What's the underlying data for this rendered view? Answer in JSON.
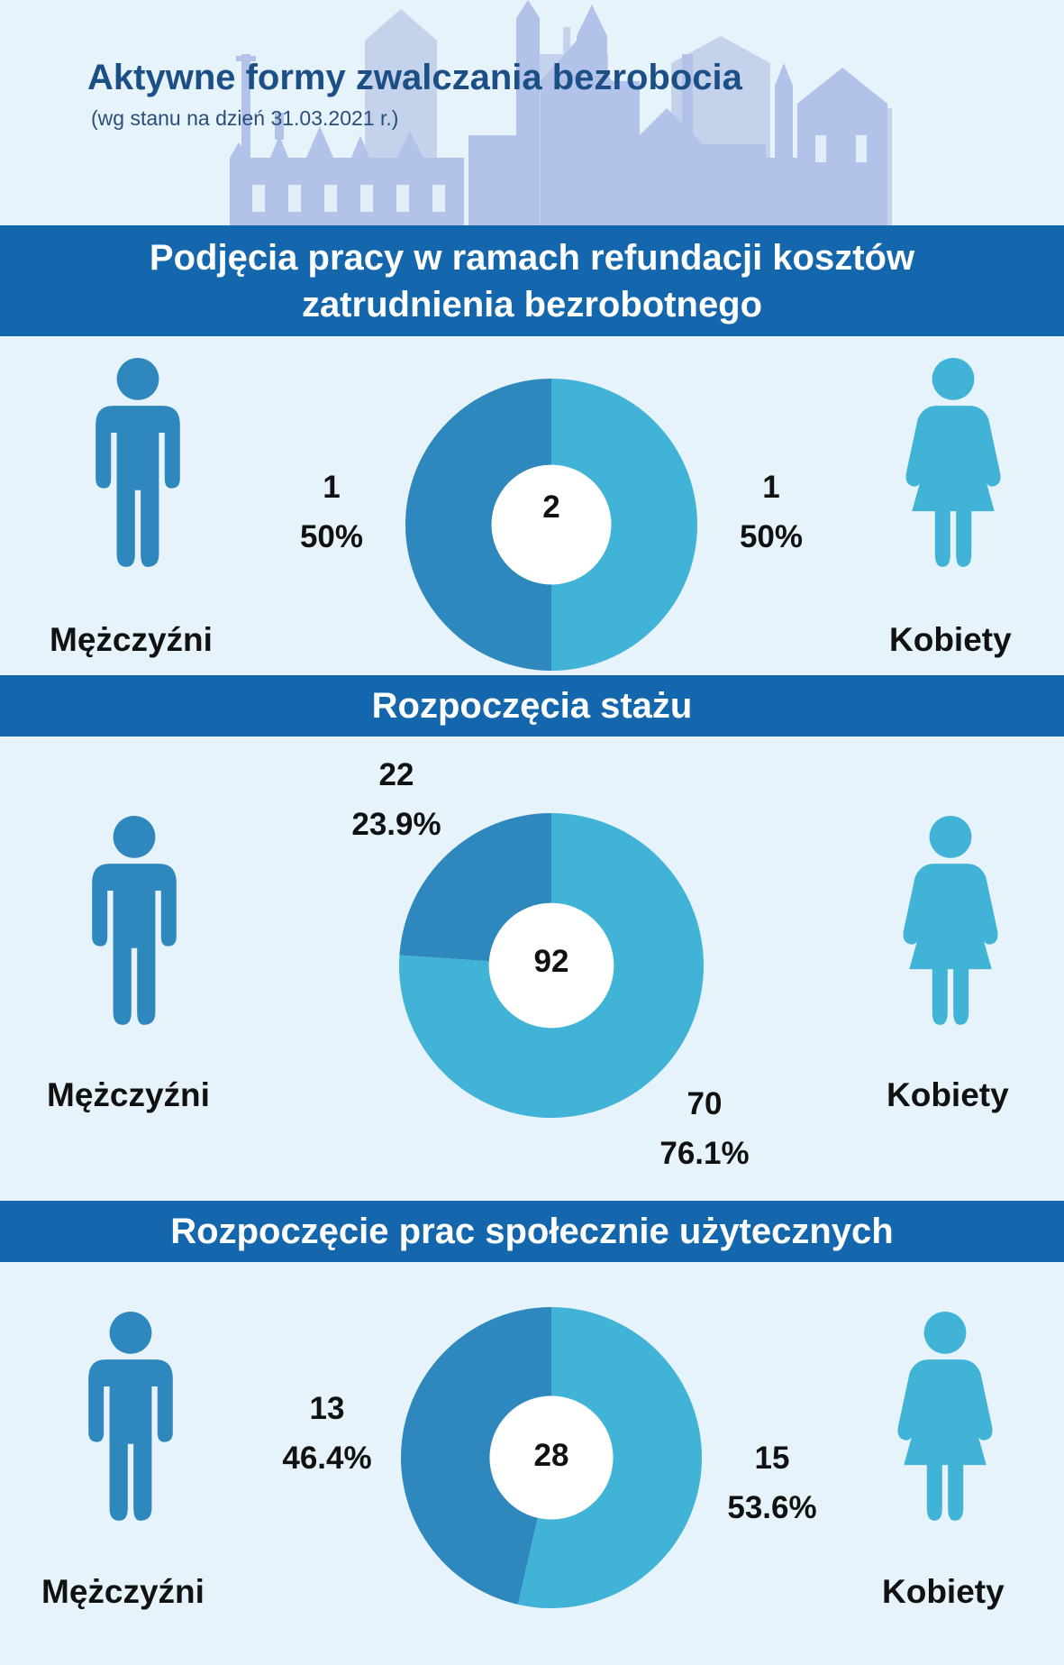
{
  "header": {
    "title": "Aktywne formy zwalczania bezrobocia",
    "subtitle": "(wg stanu na dzień 31.03.2021 r.)"
  },
  "colors": {
    "men": "#2f88bd",
    "women": "#41b3d7",
    "band": "#1466ad",
    "background": "#e7f3fb",
    "skyline": "#b8c6e8"
  },
  "sections": [
    {
      "title_lines": [
        "Podjęcia pracy w ramach refundacji kosztów",
        "zatrudnienia bezrobotnego"
      ],
      "men_label": "Mężczyźni",
      "women_label": "Kobiety",
      "total": "2",
      "men_count": "1",
      "men_pct": "50%",
      "women_count": "1",
      "women_pct": "50%"
    },
    {
      "title_lines": [
        "Rozpoczęcia stażu"
      ],
      "men_label": "Mężczyźni",
      "women_label": "Kobiety",
      "total": "92",
      "men_count": "22",
      "men_pct": "23.9%",
      "women_count": "70",
      "women_pct": "76.1%"
    },
    {
      "title_lines": [
        "Rozpoczęcie prac społecznie użytecznych"
      ],
      "men_label": "Mężczyźni",
      "women_label": "Kobiety",
      "total": "28",
      "men_count": "13",
      "men_pct": "46.4%",
      "women_count": "15",
      "women_pct": "53.6%"
    }
  ],
  "chart_data": [
    {
      "type": "pie",
      "title": "Podjęcia pracy w ramach refundacji kosztów zatrudnienia bezrobotnego",
      "categories": [
        "Mężczyźni",
        "Kobiety"
      ],
      "values": [
        1,
        1
      ],
      "percentages": [
        50,
        50
      ],
      "total": 2,
      "colors": [
        "#2f88bd",
        "#41b3d7"
      ]
    },
    {
      "type": "pie",
      "title": "Rozpoczęcia stażu",
      "categories": [
        "Mężczyźni",
        "Kobiety"
      ],
      "values": [
        22,
        70
      ],
      "percentages": [
        23.9,
        76.1
      ],
      "total": 92,
      "colors": [
        "#2f88bd",
        "#41b3d7"
      ]
    },
    {
      "type": "pie",
      "title": "Rozpoczęcie prac społecznie użytecznych",
      "categories": [
        "Mężczyźni",
        "Kobiety"
      ],
      "values": [
        13,
        15
      ],
      "percentages": [
        46.4,
        53.6
      ],
      "total": 28,
      "colors": [
        "#2f88bd",
        "#41b3d7"
      ]
    }
  ]
}
